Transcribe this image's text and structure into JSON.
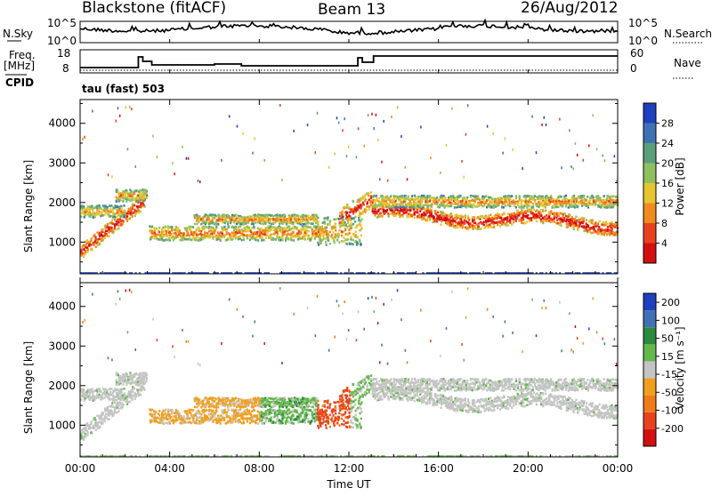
{
  "header": {
    "station": "Blackstone (fitACF)",
    "beam": "Beam 13",
    "date": "26/Aug/2012"
  },
  "panels": {
    "noise": {
      "left_label": "N.Sky",
      "right_label": "N.Search",
      "left_ticks": [
        "10^5",
        "10^0"
      ],
      "right_ticks": [
        "10^5",
        "10^0"
      ]
    },
    "freq": {
      "left_label_1": "Freq.",
      "left_label_2": "[MHz]",
      "left_label_3": "CPID",
      "right_label": "Nave",
      "left_ticks": [
        "18",
        "8"
      ],
      "right_ticks": [
        "60",
        "0"
      ]
    },
    "cpid": {
      "text": "tau (fast) 503"
    }
  },
  "chart_data": [
    {
      "type": "heatmap",
      "name": "power",
      "ylabel": "Slant Range [km]",
      "xlabel": "Time UT",
      "yticks": [
        "1000",
        "2000",
        "3000",
        "4000"
      ],
      "ylim": [
        200,
        4600
      ],
      "colorbar": {
        "label": "Power [dB]",
        "ticks": [
          "4",
          "8",
          "12",
          "16",
          "20",
          "24",
          "28"
        ],
        "colors": [
          "#1f3fbf",
          "#3f72b5",
          "#5b9f7a",
          "#8fc060",
          "#e7c52e",
          "#f08b1f",
          "#e8421c",
          "#d40f0f"
        ]
      }
    },
    {
      "type": "heatmap",
      "name": "velocity",
      "ylabel": "Slant Range [km]",
      "xlabel": "Time UT",
      "yticks": [
        "1000",
        "2000",
        "3000",
        "4000"
      ],
      "ylim": [
        200,
        4600
      ],
      "colorbar": {
        "label": "Velocity [m s⁻¹]",
        "ticks": [
          "200",
          "100",
          "50",
          "15",
          "-15",
          "-50",
          "-100",
          "-200"
        ],
        "colors": [
          "#1f3fbf",
          "#3f72b5",
          "#2c8a3e",
          "#63b84a",
          "#c4c4c4",
          "#f0a01f",
          "#f07b18",
          "#e8421c",
          "#d40f0f"
        ]
      }
    }
  ],
  "x_axis": {
    "ticks": [
      "00:00",
      "04:00",
      "08:00",
      "12:00",
      "16:00",
      "20:00",
      "00:00"
    ],
    "title": "Time UT"
  }
}
